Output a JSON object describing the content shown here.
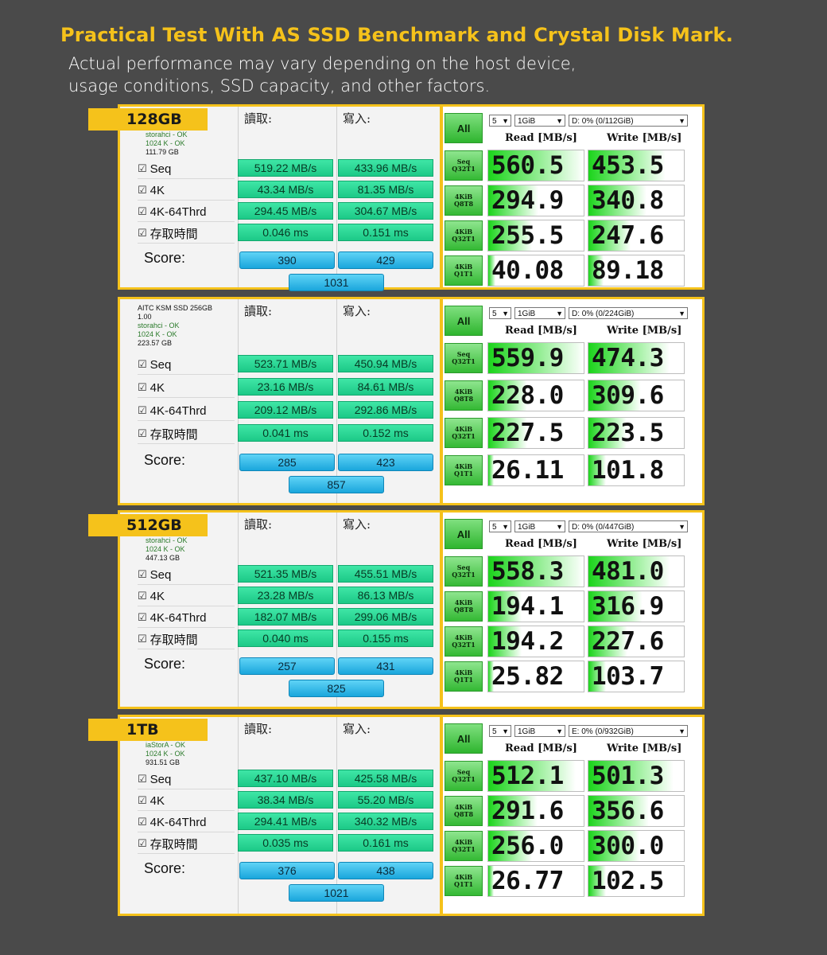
{
  "header": {
    "title": "Practical Test With AS SSD Benchmark and Crystal Disk Mark.",
    "subtitle_line1": "Actual performance may vary depending on the host device,",
    "subtitle_line2": "usage conditions, SSD capacity, and other factors."
  },
  "colors": {
    "accent": "#f5c21b",
    "background": "#4a4a4a",
    "green": "#1cc987",
    "blue": "#1aa6dc"
  },
  "labels": {
    "read_col": "讀取:",
    "write_col": "寫入:",
    "seq": "Seq",
    "k4": "4K",
    "k4_64": "4K-64Thrd",
    "access": "存取時間",
    "score": "Score:",
    "checkbox": "☑",
    "cdm_all": "All",
    "cdm_read": "Read [MB/s]",
    "cdm_write": "Write [MB/s]",
    "t1a": "Seq",
    "t1b": "Q32T1",
    "t2a": "4KiB",
    "t2b": "Q8T8",
    "t3a": "4KiB",
    "t3b": "Q32T1",
    "t4a": "4KiB",
    "t4b": "Q1T1"
  },
  "panels": [
    {
      "tag": "128GB",
      "info": {
        "dev": "",
        "ver": "",
        "ok1": "storahci - OK",
        "ok2": "1024 K - OK",
        "size": "111.79 GB"
      },
      "as": {
        "seq": [
          "519.22 MB/s",
          "433.96 MB/s"
        ],
        "k4": [
          "43.34 MB/s",
          "81.35 MB/s"
        ],
        "k4_64": [
          "294.45 MB/s",
          "304.67 MB/s"
        ],
        "access": [
          "0.046 ms",
          "0.151 ms"
        ],
        "score": [
          "390",
          "429"
        ],
        "total": "1031"
      },
      "cdm": {
        "count": "5",
        "size": "1GiB",
        "drive": "D: 0% (0/112GiB)",
        "read": [
          "560.5",
          "294.9",
          "255.5",
          "40.08"
        ],
        "write": [
          "453.5",
          "340.8",
          "247.6",
          "89.18"
        ]
      }
    },
    {
      "tag": "",
      "info": {
        "dev": "AITC KSM SSD 256GB",
        "ver": "1.00",
        "ok1": "storahci - OK",
        "ok2": "1024 K - OK",
        "size": "223.57 GB"
      },
      "as": {
        "seq": [
          "523.71 MB/s",
          "450.94 MB/s"
        ],
        "k4": [
          "23.16 MB/s",
          "84.61 MB/s"
        ],
        "k4_64": [
          "209.12 MB/s",
          "292.86 MB/s"
        ],
        "access": [
          "0.041 ms",
          "0.152 ms"
        ],
        "score": [
          "285",
          "423"
        ],
        "total": "857"
      },
      "cdm": {
        "count": "5",
        "size": "1GiB",
        "drive": "D: 0% (0/224GiB)",
        "read": [
          "559.9",
          "228.0",
          "227.5",
          "26.11"
        ],
        "write": [
          "474.3",
          "309.6",
          "223.5",
          "101.8"
        ]
      }
    },
    {
      "tag": "512GB",
      "info": {
        "dev": "",
        "ver": "",
        "ok1": "storahci - OK",
        "ok2": "1024 K - OK",
        "size": "447.13 GB"
      },
      "as": {
        "seq": [
          "521.35 MB/s",
          "455.51 MB/s"
        ],
        "k4": [
          "23.28 MB/s",
          "86.13 MB/s"
        ],
        "k4_64": [
          "182.07 MB/s",
          "299.06 MB/s"
        ],
        "access": [
          "0.040 ms",
          "0.155 ms"
        ],
        "score": [
          "257",
          "431"
        ],
        "total": "825"
      },
      "cdm": {
        "count": "5",
        "size": "1GiB",
        "drive": "D: 0% (0/447GiB)",
        "read": [
          "558.3",
          "194.1",
          "194.2",
          "25.82"
        ],
        "write": [
          "481.0",
          "316.9",
          "227.6",
          "103.7"
        ]
      }
    },
    {
      "tag": "1TB",
      "info": {
        "dev": "",
        "ver": "",
        "ok1": "iaStorA - OK",
        "ok2": "1024 K - OK",
        "size": "931.51 GB"
      },
      "as": {
        "seq": [
          "437.10 MB/s",
          "425.58 MB/s"
        ],
        "k4": [
          "38.34 MB/s",
          "55.20 MB/s"
        ],
        "k4_64": [
          "294.41 MB/s",
          "340.32 MB/s"
        ],
        "access": [
          "0.035 ms",
          "0.161 ms"
        ],
        "score": [
          "376",
          "438"
        ],
        "total": "1021"
      },
      "cdm": {
        "count": "5",
        "size": "1GiB",
        "drive": "E: 0% (0/932GiB)",
        "read": [
          "512.1",
          "291.6",
          "256.0",
          "26.77"
        ],
        "write": [
          "501.3",
          "356.6",
          "300.0",
          "102.5"
        ]
      }
    }
  ]
}
